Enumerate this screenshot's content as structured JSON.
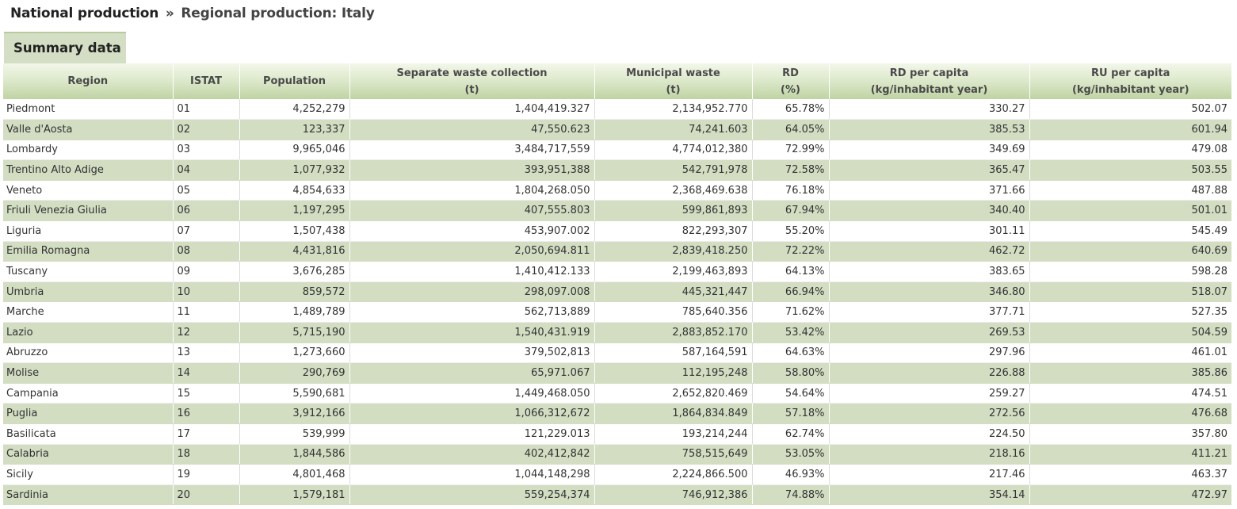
{
  "breadcrumb": {
    "parent": "National production",
    "separator": "»",
    "current": "Regional production: Italy"
  },
  "tab": {
    "label": "Summary data"
  },
  "table": {
    "headers": {
      "region": "Region",
      "istat": "ISTAT",
      "population": "Population",
      "separate_line1": "Separate waste collection",
      "separate_line2": "(t)",
      "municipal_line1": "Municipal waste",
      "municipal_line2": "(t)",
      "rd_line1": "RD",
      "rd_line2": "(%)",
      "rd_pc_line1": "RD per capita",
      "rd_pc_line2": "(kg/inhabitant year)",
      "ru_pc_line1": "RU per capita",
      "ru_pc_line2": "(kg/inhabitant year)"
    },
    "rows": [
      [
        "Piedmont",
        "01",
        "4,252,279",
        "1,404,419.327",
        "2,134,952.770",
        "65.78%",
        "330.27",
        "502.07"
      ],
      [
        "Valle d'Aosta",
        "02",
        "123,337",
        "47,550.623",
        "74,241.603",
        "64.05%",
        "385.53",
        "601.94"
      ],
      [
        "Lombardy",
        "03",
        "9,965,046",
        "3,484,717,559",
        "4,774,012,380",
        "72.99%",
        "349.69",
        "479.08"
      ],
      [
        "Trentino Alto Adige",
        "04",
        "1,077,932",
        "393,951,388",
        "542,791,978",
        "72.58%",
        "365.47",
        "503.55"
      ],
      [
        "Veneto",
        "05",
        "4,854,633",
        "1,804,268.050",
        "2,368,469.638",
        "76.18%",
        "371.66",
        "487.88"
      ],
      [
        "Friuli Venezia Giulia",
        "06",
        "1,197,295",
        "407,555.803",
        "599,861,893",
        "67.94%",
        "340.40",
        "501.01"
      ],
      [
        "Liguria",
        "07",
        "1,507,438",
        "453,907.002",
        "822,293,307",
        "55.20%",
        "301.11",
        "545.49"
      ],
      [
        "Emilia Romagna",
        "08",
        "4,431,816",
        "2,050,694.811",
        "2,839,418.250",
        "72.22%",
        "462.72",
        "640.69"
      ],
      [
        "Tuscany",
        "09",
        "3,676,285",
        "1,410,412.133",
        "2,199,463,893",
        "64.13%",
        "383.65",
        "598.28"
      ],
      [
        "Umbria",
        "10",
        "859,572",
        "298,097.008",
        "445,321,447",
        "66.94%",
        "346.80",
        "518.07"
      ],
      [
        "Marche",
        "11",
        "1,489,789",
        "562,713,889",
        "785,640.356",
        "71.62%",
        "377.71",
        "527.35"
      ],
      [
        "Lazio",
        "12",
        "5,715,190",
        "1,540,431.919",
        "2,883,852.170",
        "53.42%",
        "269.53",
        "504.59"
      ],
      [
        "Abruzzo",
        "13",
        "1,273,660",
        "379,502,813",
        "587,164,591",
        "64.63%",
        "297.96",
        "461.01"
      ],
      [
        "Molise",
        "14",
        "290,769",
        "65,971.067",
        "112,195,248",
        "58.80%",
        "226.88",
        "385.86"
      ],
      [
        "Campania",
        "15",
        "5,590,681",
        "1,449,468.050",
        "2,652,820.469",
        "54.64%",
        "259.27",
        "474.51"
      ],
      [
        "Puglia",
        "16",
        "3,912,166",
        "1,066,312,672",
        "1,864,834.849",
        "57.18%",
        "272.56",
        "476.68"
      ],
      [
        "Basilicata",
        "17",
        "539,999",
        "121,229.013",
        "193,214,244",
        "62.74%",
        "224.50",
        "357.80"
      ],
      [
        "Calabria",
        "18",
        "1,844,586",
        "402,412,842",
        "758,515,649",
        "53.05%",
        "218.16",
        "411.21"
      ],
      [
        "Sicily",
        "19",
        "4,801,468",
        "1,044,148,298",
        "2,224,866.500",
        "46.93%",
        "217.46",
        "463.37"
      ],
      [
        "Sardinia",
        "20",
        "1,579,181",
        "559,254,374",
        "746,912,386",
        "74.88%",
        "354.14",
        "472.97"
      ]
    ]
  }
}
